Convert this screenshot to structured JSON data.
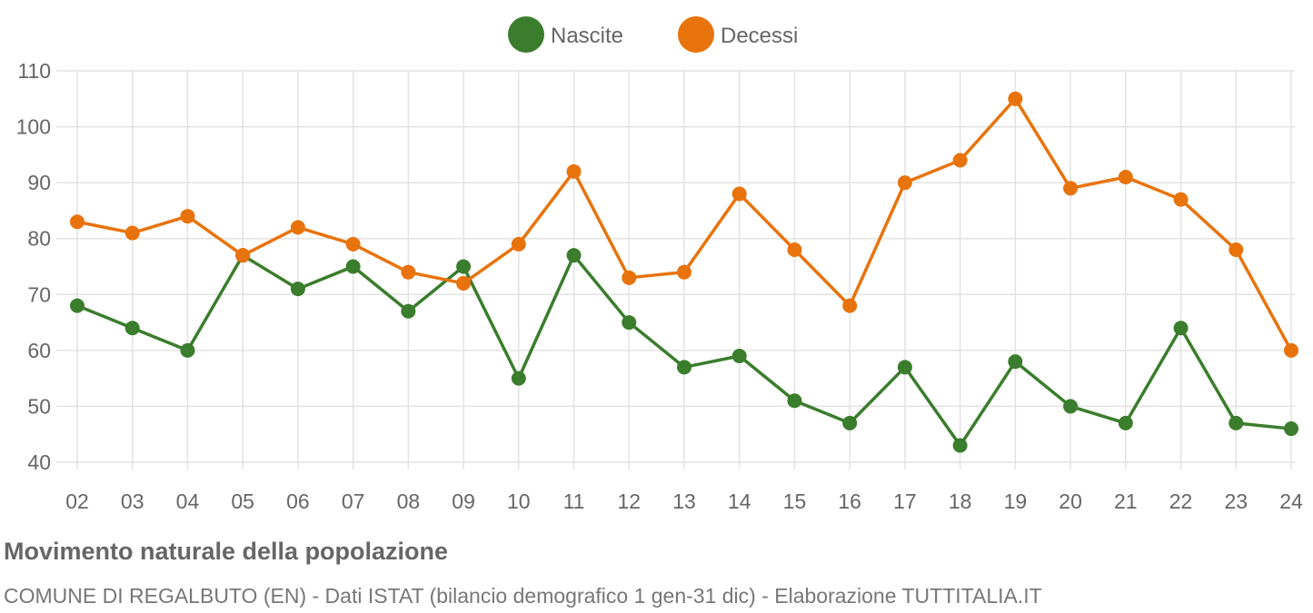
{
  "chart_data": {
    "type": "line",
    "title": "Movimento naturale della popolazione",
    "subtitle": "COMUNE DI REGALBUTO (EN) - Dati ISTAT (bilancio demografico 1 gen-31 dic) - Elaborazione TUTTITALIA.IT",
    "xlabel": "",
    "ylabel": "",
    "categories": [
      "02",
      "03",
      "04",
      "05",
      "06",
      "07",
      "08",
      "09",
      "10",
      "11",
      "12",
      "13",
      "14",
      "15",
      "16",
      "17",
      "18",
      "19",
      "20",
      "21",
      "22",
      "23",
      "24"
    ],
    "ylim": [
      40,
      110
    ],
    "yticks": [
      40,
      50,
      60,
      70,
      80,
      90,
      100,
      110
    ],
    "grid": true,
    "legend_position": "top-center",
    "series": [
      {
        "name": "Nascite",
        "color": "#3a7d2c",
        "values": [
          68,
          64,
          60,
          77,
          71,
          75,
          67,
          75,
          55,
          77,
          65,
          57,
          59,
          51,
          47,
          57,
          43,
          58,
          50,
          47,
          64,
          47,
          46
        ]
      },
      {
        "name": "Decessi",
        "color": "#e8730c",
        "values": [
          83,
          81,
          84,
          77,
          82,
          79,
          74,
          72,
          79,
          92,
          73,
          74,
          88,
          78,
          68,
          90,
          94,
          105,
          89,
          91,
          87,
          78,
          60
        ]
      }
    ]
  }
}
